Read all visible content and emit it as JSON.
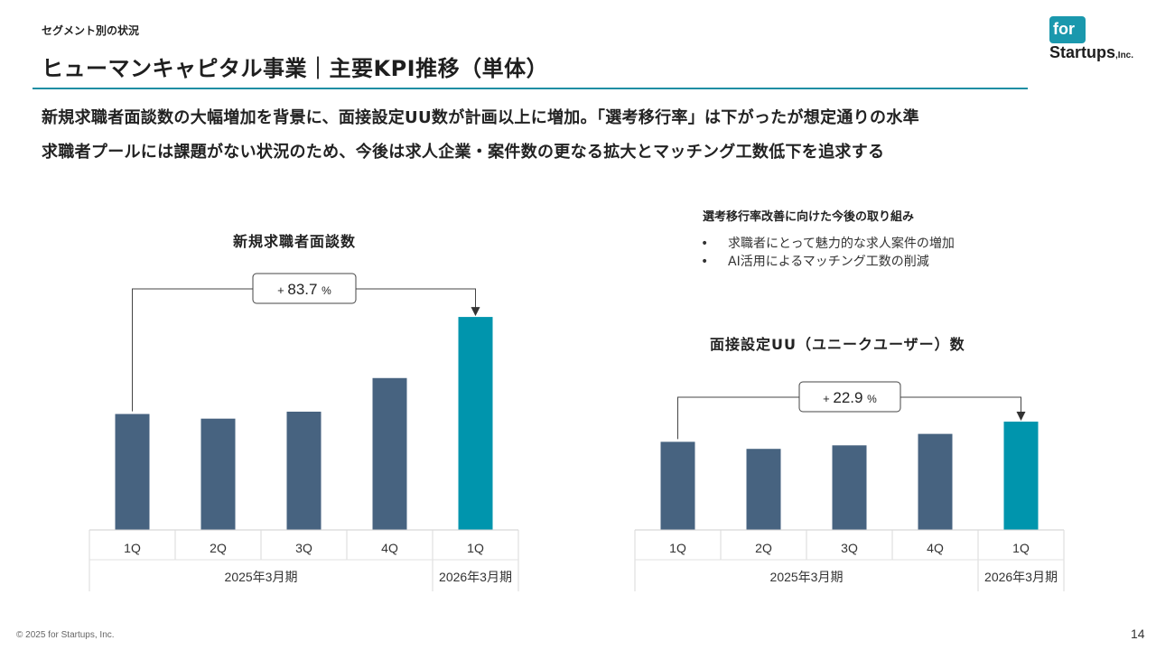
{
  "header": {
    "section_label": "セグメント別の状況",
    "title": "ヒューマンキャピタル事業｜主要KPI推移（単体）",
    "headline_1": "新規求職者面談数の大幅増加を背景に、面接設定UU数が計画以上に増加。「選考移行率」は下がったが想定通りの水準",
    "headline_2": "求職者プールには課題がない状況のため、今後は求人企業・案件数の更なる拡大とマッチング工数低下を追求する"
  },
  "logo": {
    "for": "for",
    "startups": "Startups",
    "inc": ",Inc."
  },
  "side_panel": {
    "heading": "選考移行率改善に向けた今後の取り組み",
    "bullet_char": "•",
    "items": [
      "求職者にとって魅力的な求人案件の増加",
      "AI活用によるマッチング工数の削減"
    ]
  },
  "colors": {
    "accent": "#1f8ea3",
    "bar_past": "#476380",
    "bar_current": "#0095ad"
  },
  "chart_data": [
    {
      "type": "bar",
      "title": "新規求職者面談数",
      "categories": [
        "1Q",
        "2Q",
        "3Q",
        "4Q",
        "1Q"
      ],
      "groups": [
        {
          "label": "2025年3月期",
          "count": 4
        },
        {
          "label": "2026年3月期",
          "count": 1
        }
      ],
      "values": [
        100,
        96,
        102,
        131,
        183.7
      ],
      "value_note": "relative heights estimated; 1Q FY2025 indexed to 100",
      "highlight_index": 4,
      "annotation": {
        "prefix": "+",
        "value": "83.7",
        "unit": "%"
      },
      "ylim": [
        0,
        190
      ]
    },
    {
      "type": "bar",
      "title": "面接設定UU（ユニークユーザー）数",
      "categories": [
        "1Q",
        "2Q",
        "3Q",
        "4Q",
        "1Q"
      ],
      "groups": [
        {
          "label": "2025年3月期",
          "count": 4
        },
        {
          "label": "2026年3月期",
          "count": 1
        }
      ],
      "values": [
        100,
        92,
        96,
        109,
        122.9
      ],
      "value_note": "relative heights estimated; 1Q FY2025 indexed to 100",
      "highlight_index": 4,
      "annotation": {
        "prefix": "+",
        "value": "22.9",
        "unit": "%"
      },
      "ylim": [
        0,
        125
      ]
    }
  ],
  "footer": {
    "copyright": "© 2025 for Startups, Inc.",
    "page_number": "14"
  }
}
